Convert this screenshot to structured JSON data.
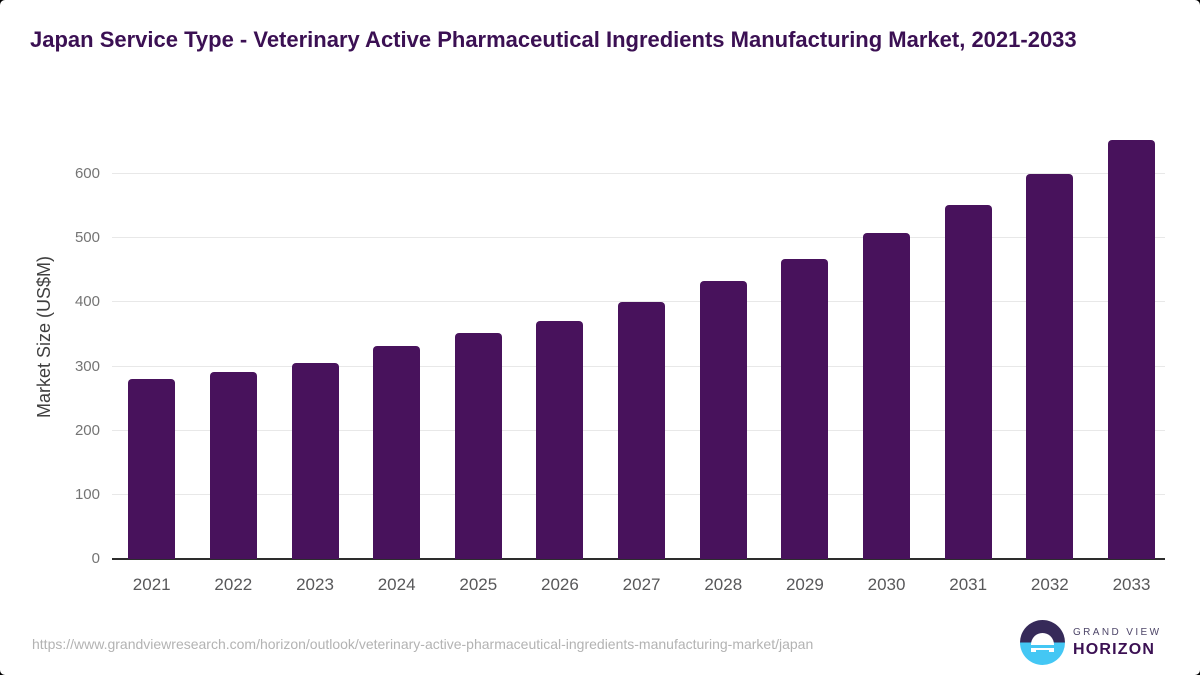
{
  "title": "Japan Service Type - Veterinary Active Pharmaceutical Ingredients Manufacturing Market, 2021-2033",
  "chart_data": {
    "type": "bar",
    "categories": [
      "2021",
      "2022",
      "2023",
      "2024",
      "2025",
      "2026",
      "2027",
      "2028",
      "2029",
      "2030",
      "2031",
      "2032",
      "2033"
    ],
    "values": [
      280,
      292,
      305,
      332,
      352,
      371,
      401,
      433,
      467,
      508,
      551,
      600,
      653
    ],
    "title": "Japan Service Type - Veterinary Active Pharmaceutical Ingredients Manufacturing Market, 2021-2033",
    "xlabel": "",
    "ylabel": "Market Size (US$M)",
    "ylim": [
      0,
      660
    ],
    "yticks": [
      0,
      100,
      200,
      300,
      400,
      500,
      600
    ],
    "grid": true,
    "legend": "none",
    "bar_color": "#48125c"
  },
  "colors": {
    "title": "#3b1053",
    "bar": "#48125c",
    "gridline": "#e8e8e8",
    "baseline": "#2d2d2d",
    "y_tick": "#747474",
    "x_tick": "#58585a",
    "axis_title": "#3f3f3f",
    "url_text": "#b3b3b3",
    "logo_dark": "#362a59",
    "logo_blue": "#44c7f4"
  },
  "footer": {
    "source_url": "https://www.grandviewresearch.com/horizon/outlook/veterinary-active-pharmaceutical-ingredients-manufacturing-market/japan",
    "logo": {
      "icon": "horizon-sun-icon",
      "line1": "GRAND VIEW",
      "line2": "HORIZON"
    }
  }
}
